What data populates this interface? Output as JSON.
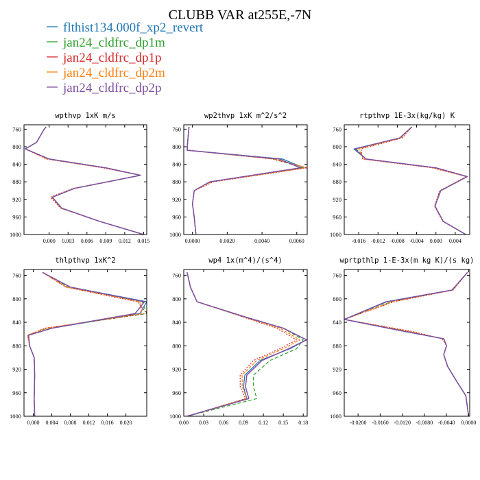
{
  "title": "CLUBB VAR at255E,-7N",
  "legend": [
    {
      "label": "flthist134.000f_xp2_revert",
      "color": "#1f77b4"
    },
    {
      "label": "jan24_cldfrc_dp1m",
      "color": "#2ca02c"
    },
    {
      "label": "jan24_cldfrc_dp1p",
      "color": "#d62728"
    },
    {
      "label": "jan24_cldfrc_dp2m",
      "color": "#ff7f0e"
    },
    {
      "label": "jan24_cldfrc_dp2p",
      "color": "#7f4fa0"
    }
  ],
  "chart_data": [
    {
      "type": "line",
      "title": "wpthvp  1xK m/s",
      "xlim": [
        -0.004,
        0.0155
      ],
      "xticks": [
        0.0,
        0.003,
        0.006,
        0.009,
        0.012,
        0.015
      ],
      "xtick_labels": [
        "0.000",
        "0.003",
        "0.006",
        "0.009",
        "0.012",
        "0.015"
      ],
      "ylim": [
        1000,
        750
      ],
      "yticks": [
        760,
        800,
        840,
        880,
        920,
        960,
        1000
      ],
      "y": [
        755,
        760,
        790,
        805,
        828,
        848,
        865,
        895,
        915,
        940,
        970,
        1000
      ],
      "series": [
        {
          "values": [
            -0.0005,
            -0.0008,
            -0.002,
            -0.0038,
            0.0,
            0.009,
            0.0145,
            0.004,
            0.0005,
            0.002,
            0.008,
            0.015
          ]
        },
        {
          "values": [
            -0.0005,
            -0.0008,
            -0.002,
            -0.0038,
            0.0,
            0.009,
            0.0145,
            0.004,
            0.0005,
            0.002,
            0.008,
            0.015
          ]
        },
        {
          "values": [
            -0.0005,
            -0.0008,
            -0.002,
            -0.0038,
            -0.0004,
            0.0085,
            0.0145,
            0.0038,
            0.0002,
            0.0018,
            0.008,
            0.015
          ]
        },
        {
          "values": [
            -0.0005,
            -0.0008,
            -0.002,
            -0.0038,
            -0.0003,
            0.0088,
            0.0145,
            0.0039,
            0.0004,
            0.0019,
            0.008,
            0.015
          ]
        },
        {
          "values": [
            -0.0005,
            -0.0008,
            -0.002,
            -0.0038,
            0.0,
            0.009,
            0.0145,
            0.004,
            0.0005,
            0.002,
            0.008,
            0.015
          ]
        }
      ]
    },
    {
      "type": "line",
      "title": "wp2thvp  1xK m^2/s^2",
      "xlim": [
        -0.0005,
        0.0066
      ],
      "xticks": [
        0.0,
        0.002,
        0.004,
        0.006
      ],
      "xtick_labels": [
        "0.0000",
        "0.0020",
        "0.0040",
        "0.0060"
      ],
      "ylim": [
        1000,
        750
      ],
      "yticks": [
        760,
        800,
        840,
        880,
        920,
        960,
        1000
      ],
      "y": [
        755,
        800,
        808,
        828,
        848,
        880,
        900,
        930,
        960,
        1000
      ],
      "series": [
        {
          "values": [
            -0.0002,
            -0.0003,
            -0.0003,
            0.0052,
            0.0064,
            0.001,
            0.0001,
            0.0,
            0.0001,
            0.0002
          ]
        },
        {
          "values": [
            -0.0002,
            -0.0003,
            -0.0003,
            0.0047,
            0.0063,
            0.001,
            0.0001,
            0.0,
            0.0001,
            0.0002
          ]
        },
        {
          "values": [
            -0.0002,
            -0.0003,
            -0.0003,
            0.0046,
            0.0066,
            0.0012,
            0.0001,
            0.0,
            0.0001,
            0.0002
          ]
        },
        {
          "values": [
            -0.0002,
            -0.0003,
            -0.0003,
            0.0048,
            0.0065,
            0.0011,
            0.0001,
            0.0,
            0.0001,
            0.0002
          ]
        },
        {
          "values": [
            -0.0002,
            -0.0003,
            -0.0003,
            0.005,
            0.0062,
            0.001,
            0.0001,
            0.0,
            0.0001,
            0.0002
          ]
        }
      ]
    },
    {
      "type": "line",
      "title": "rtpthvp  1E-3x(kg/kg) K",
      "xlim": [
        -0.019,
        0.007
      ],
      "xticks": [
        -0.016,
        -0.012,
        -0.008,
        -0.004,
        0.0,
        0.004
      ],
      "xtick_labels": [
        "-0.016",
        "-0.012",
        "-0.008",
        "-0.004",
        "0.000",
        "0.004"
      ],
      "ylim": [
        1000,
        750
      ],
      "yticks": [
        760,
        800,
        840,
        880,
        920,
        960,
        1000
      ],
      "y": [
        755,
        780,
        805,
        828,
        848,
        868,
        900,
        935,
        970,
        1000
      ],
      "series": [
        {
          "values": [
            -0.005,
            -0.0075,
            -0.017,
            -0.0145,
            0.0,
            0.0065,
            0.001,
            -0.0002,
            0.0015,
            0.0062
          ]
        },
        {
          "values": [
            -0.005,
            -0.0075,
            -0.0165,
            -0.0145,
            0.0,
            0.0065,
            0.001,
            -0.0002,
            0.0015,
            0.0062
          ]
        },
        {
          "values": [
            -0.005,
            -0.007,
            -0.0155,
            -0.0152,
            -0.0008,
            0.0063,
            0.0008,
            -0.0003,
            0.0014,
            0.0062
          ]
        },
        {
          "values": [
            -0.005,
            -0.0072,
            -0.016,
            -0.015,
            -0.0005,
            0.0064,
            0.0009,
            -0.0002,
            0.0015,
            0.0062
          ]
        },
        {
          "values": [
            -0.005,
            -0.0075,
            -0.0168,
            -0.0145,
            0.0,
            0.0065,
            0.001,
            -0.0002,
            0.0015,
            0.0062
          ]
        }
      ]
    },
    {
      "type": "line",
      "title": "thlpthvp  1xK^2",
      "xlim": [
        -0.002,
        0.0245
      ],
      "xticks": [
        0.0,
        0.004,
        0.008,
        0.012,
        0.016,
        0.02
      ],
      "xtick_labels": [
        "0.000",
        "0.004",
        "0.008",
        "0.012",
        "0.016",
        "0.020"
      ],
      "ylim": [
        1000,
        750
      ],
      "yticks": [
        760,
        800,
        840,
        880,
        920,
        960,
        1000
      ],
      "y": [
        755,
        780,
        805,
        825,
        850,
        862,
        880,
        900,
        930,
        970,
        1000
      ],
      "series": [
        {
          "values": [
            0.002,
            0.008,
            0.0245,
            0.023,
            0.004,
            -0.001,
            -0.0008,
            0.0002,
            0.0003,
            0.0002,
            0.0003
          ]
        },
        {
          "values": [
            0.002,
            0.0075,
            0.0235,
            0.0245,
            0.003,
            -0.0012,
            -0.0008,
            0.0002,
            0.0003,
            0.0002,
            0.0003
          ]
        },
        {
          "values": [
            0.002,
            0.007,
            0.0225,
            0.0245,
            0.0025,
            -0.0012,
            -0.0008,
            0.0002,
            0.0003,
            0.0002,
            0.0003
          ]
        },
        {
          "values": [
            0.002,
            0.0072,
            0.023,
            0.0235,
            0.0028,
            -0.0012,
            -0.0008,
            0.0002,
            0.0003,
            0.0002,
            0.0003
          ]
        },
        {
          "values": [
            0.002,
            0.008,
            0.024,
            0.022,
            0.004,
            -0.001,
            -0.0008,
            0.0002,
            0.0003,
            0.0002,
            0.0003
          ]
        }
      ]
    },
    {
      "type": "line",
      "title": "wp4  1x(m^4)/(s^4)",
      "xlim": [
        0.0,
        0.186
      ],
      "xticks": [
        0.0,
        0.03,
        0.06,
        0.09,
        0.12,
        0.15,
        0.18
      ],
      "xtick_labels": [
        "0.00",
        "0.03",
        "0.06",
        "0.09",
        "0.12",
        "0.15",
        "0.18"
      ],
      "ylim": [
        1000,
        750
      ],
      "yticks": [
        760,
        800,
        840,
        880,
        920,
        960,
        1000
      ],
      "y": [
        755,
        780,
        805,
        830,
        850,
        870,
        885,
        905,
        930,
        950,
        970,
        1000
      ],
      "series": [
        {
          "values": [
            0.005,
            0.01,
            0.02,
            0.09,
            0.15,
            0.185,
            0.16,
            0.115,
            0.092,
            0.09,
            0.095,
            0.005
          ]
        },
        {
          "values": [
            0.005,
            0.01,
            0.02,
            0.09,
            0.15,
            0.18,
            0.17,
            0.13,
            0.105,
            0.105,
            0.11,
            0.005
          ]
        },
        {
          "values": [
            0.005,
            0.01,
            0.02,
            0.087,
            0.14,
            0.17,
            0.145,
            0.105,
            0.085,
            0.085,
            0.093,
            0.005
          ]
        },
        {
          "values": [
            0.005,
            0.01,
            0.02,
            0.088,
            0.145,
            0.175,
            0.15,
            0.11,
            0.088,
            0.088,
            0.095,
            0.005
          ]
        },
        {
          "values": [
            0.005,
            0.01,
            0.02,
            0.09,
            0.15,
            0.185,
            0.158,
            0.118,
            0.095,
            0.093,
            0.098,
            0.005
          ]
        }
      ]
    },
    {
      "type": "line",
      "title": "wprtpthlp  1-E-3x(m kg K)/(s kg)",
      "xlim": [
        -0.0225,
        0.0002
      ],
      "xticks": [
        -0.02,
        -0.016,
        -0.012,
        -0.008,
        -0.004,
        0.0
      ],
      "xtick_labels": [
        "-0.0200",
        "-0.0160",
        "-0.0120",
        "-0.0080",
        "-0.0040",
        "0.0000"
      ],
      "ylim": [
        1000,
        750
      ],
      "yticks": [
        760,
        800,
        840,
        880,
        920,
        960,
        1000
      ],
      "y": [
        755,
        785,
        805,
        835,
        855,
        868,
        880,
        895,
        915,
        940,
        965,
        1000
      ],
      "series": [
        {
          "values": [
            -0.0002,
            -0.003,
            -0.015,
            -0.0225,
            -0.012,
            -0.0045,
            -0.004,
            -0.0045,
            -0.0038,
            -0.0022,
            -0.0005,
            0.0
          ]
        },
        {
          "values": [
            -0.0002,
            -0.003,
            -0.014,
            -0.0225,
            -0.0115,
            -0.0045,
            -0.004,
            -0.0045,
            -0.0038,
            -0.0022,
            -0.0005,
            0.0
          ]
        },
        {
          "values": [
            -0.0002,
            -0.0028,
            -0.0135,
            -0.0225,
            -0.0105,
            -0.0048,
            -0.004,
            -0.0045,
            -0.0038,
            -0.0022,
            -0.0005,
            0.0
          ]
        },
        {
          "values": [
            -0.0002,
            -0.0029,
            -0.0138,
            -0.0225,
            -0.011,
            -0.0046,
            -0.004,
            -0.0045,
            -0.0038,
            -0.0022,
            -0.0005,
            0.0
          ]
        },
        {
          "values": [
            -0.0002,
            -0.003,
            -0.0148,
            -0.0225,
            -0.0118,
            -0.0045,
            -0.004,
            -0.0045,
            -0.0038,
            -0.0022,
            -0.0005,
            0.0
          ]
        }
      ]
    }
  ]
}
